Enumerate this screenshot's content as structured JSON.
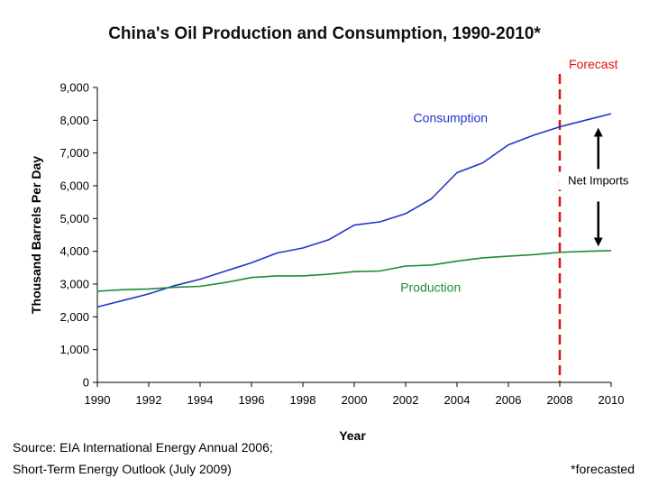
{
  "chart_data": {
    "type": "line",
    "title": "China's Oil Production and Consumption, 1990-2010*",
    "xlabel": "Year",
    "ylabel": "Thousand Barrels Per Day",
    "xlim": [
      1990,
      2010
    ],
    "ylim": [
      0,
      9000
    ],
    "x_ticks": [
      "1990",
      "1992",
      "1994",
      "1996",
      "1998",
      "2000",
      "2002",
      "2004",
      "2006",
      "2008",
      "2010"
    ],
    "y_ticks": [
      "0",
      "1,000",
      "2,000",
      "3,000",
      "4,000",
      "5,000",
      "6,000",
      "7,000",
      "8,000",
      "9,000"
    ],
    "grid": false,
    "x": [
      1990,
      1991,
      1992,
      1993,
      1994,
      1995,
      1996,
      1997,
      1998,
      1999,
      2000,
      2001,
      2002,
      2003,
      2004,
      2005,
      2006,
      2007,
      2008,
      2009,
      2010
    ],
    "series": [
      {
        "name": "Consumption",
        "color": "#2233cc",
        "values": [
          2300,
          2500,
          2700,
          2950,
          3150,
          3400,
          3650,
          3950,
          4100,
          4350,
          4800,
          4900,
          5150,
          5600,
          6400,
          6700,
          7250,
          7550,
          7800,
          8000,
          8200
        ]
      },
      {
        "name": "Production",
        "color": "#1b8a3a",
        "values": [
          2780,
          2830,
          2850,
          2900,
          2930,
          3050,
          3200,
          3250,
          3250,
          3300,
          3380,
          3400,
          3550,
          3580,
          3700,
          3800,
          3850,
          3900,
          3970,
          4000,
          4020
        ]
      }
    ],
    "forecast": {
      "label": "Forecast",
      "x": 2008,
      "color": "#dd1111"
    },
    "annotation": {
      "text": "Net Imports",
      "x": 2009.5,
      "arrow_top": 7800,
      "arrow_bottom": 4120
    }
  },
  "source_lines": [
    "Source: EIA International Energy Annual 2006;",
    "Short-Term Energy Outlook (July 2009)"
  ],
  "footnote": "*forecasted"
}
